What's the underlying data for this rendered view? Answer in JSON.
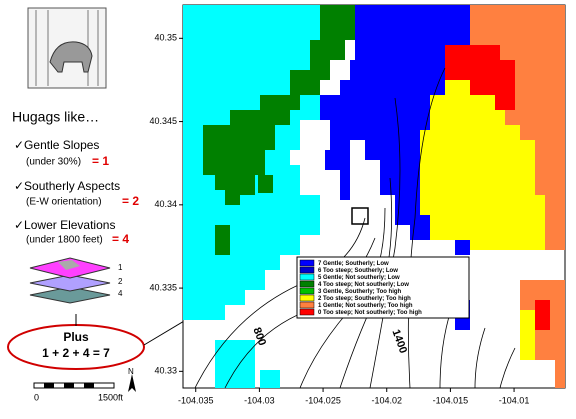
{
  "panel": {
    "heading": "Hugags like…",
    "criteria": [
      {
        "label": "✓Gentle Slopes",
        "note": "(under 30%)",
        "score": "= 1"
      },
      {
        "label": "✓Southerly Aspects",
        "note": "(E-W orientation)",
        "score": "= 2"
      },
      {
        "label": "✓Lower Elevations",
        "note": "(under 1800 feet)",
        "score": "= 4"
      }
    ],
    "layer_labels": [
      "1",
      "2",
      "4"
    ],
    "sum_title": "Plus",
    "sum": "1 + 2 + 4 = 7",
    "scale": [
      "0",
      "1500ft"
    ],
    "north": "N"
  },
  "map": {
    "xlim": [
      -104.036,
      -104.006
    ],
    "ylim": [
      40.329,
      40.352
    ],
    "xticks": [
      -104.035,
      -104.03,
      -104.025,
      -104.02,
      -104.015,
      -104.01
    ],
    "yticks": [
      40.35,
      40.345,
      40.34,
      40.335,
      40.33
    ],
    "contour_labels": [
      "800",
      "1400"
    ],
    "legend": [
      {
        "label": "7 Gentle; Southerly; Low",
        "color": "#0000ff"
      },
      {
        "label": "6 Too steep; Southerly; Low",
        "color": "#0000cc"
      },
      {
        "label": "5 Gentle; Not southerly; Low",
        "color": "#00ffff"
      },
      {
        "label": "4 Too steep; Not southerly; Low",
        "color": "#008000"
      },
      {
        "label": "3 Gentle, Southerly; Too high",
        "color": "#00c000"
      },
      {
        "label": "2 Too steep; Southerly; Too high",
        "color": "#ffff00"
      },
      {
        "label": "1 Gentle; Not southerly; Too high",
        "color": "#ff8040"
      },
      {
        "label": "0 Too steep; Not southerly; Too high",
        "color": "#ff0000"
      }
    ]
  }
}
